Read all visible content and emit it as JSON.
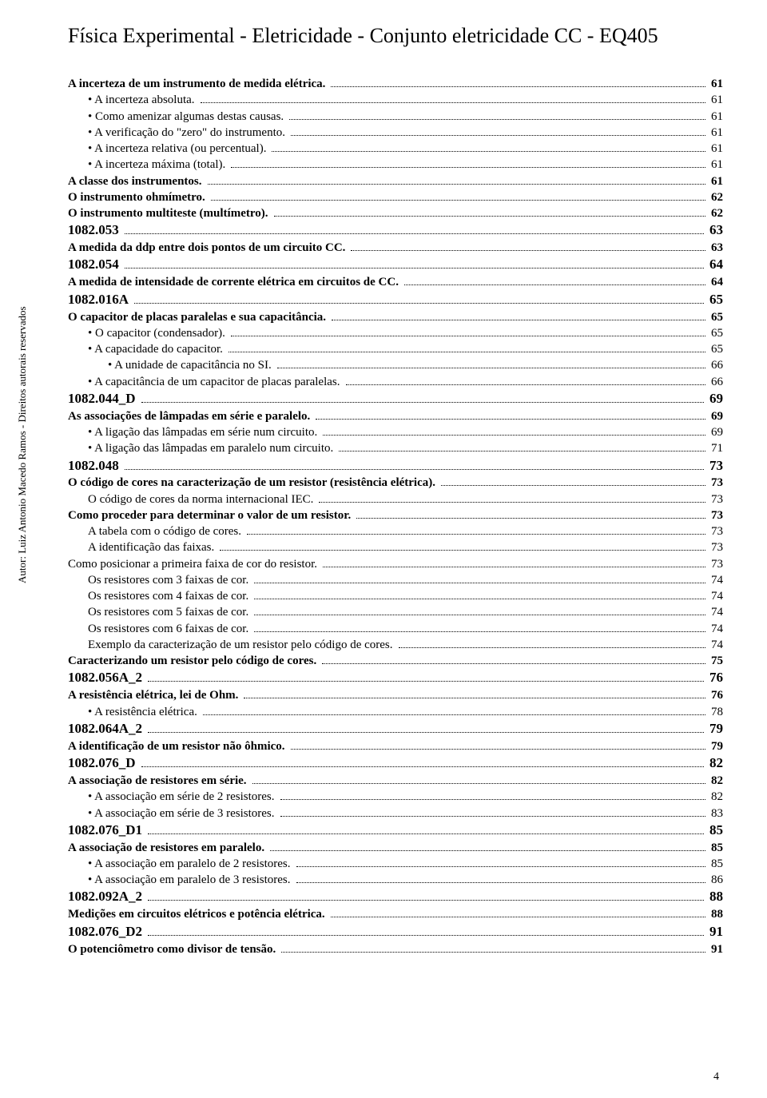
{
  "header_title": "Física Experimental - Eletricidade - Conjunto eletricidade CC - EQ405",
  "vertical_note": "Autor: Luiz Antonio Macedo Ramos - Direitos autorais reservados",
  "page_number": "4",
  "font_family": "Times New Roman",
  "text_color": "#000000",
  "background_color": "#ffffff",
  "toc": [
    {
      "title": "A incerteza de um instrumento de medida elétrica.",
      "page": "61",
      "style": "bold",
      "indent": 0
    },
    {
      "title": "• A incerteza absoluta.",
      "page": "61",
      "style": "normal",
      "indent": 1
    },
    {
      "title": "• Como amenizar algumas destas causas.",
      "page": "61",
      "style": "normal",
      "indent": 1
    },
    {
      "title": "• A verificação do \"zero\" do instrumento.",
      "page": "61",
      "style": "normal",
      "indent": 1
    },
    {
      "title": "• A incerteza relativa (ou percentual).",
      "page": "61",
      "style": "normal",
      "indent": 1
    },
    {
      "title": "• A incerteza máxima (total).",
      "page": "61",
      "style": "normal",
      "indent": 1
    },
    {
      "title": "A classe dos instrumentos.",
      "page": "61",
      "style": "bold",
      "indent": 0
    },
    {
      "title": "O instrumento ohmímetro.",
      "page": "62",
      "style": "bold",
      "indent": 0
    },
    {
      "title": "O instrumento multiteste (multímetro).",
      "page": "62",
      "style": "bold",
      "indent": 0
    },
    {
      "title": "1082.053",
      "page": "63",
      "style": "code",
      "indent": 0
    },
    {
      "title": "A medida da ddp entre dois pontos de um circuito CC.",
      "page": "63",
      "style": "bold",
      "indent": 0
    },
    {
      "title": "1082.054",
      "page": "64",
      "style": "code",
      "indent": 0
    },
    {
      "title": "A medida de intensidade de corrente elétrica em circuitos de CC.",
      "page": "64",
      "style": "bold",
      "indent": 0
    },
    {
      "title": "1082.016A",
      "page": "65",
      "style": "code",
      "indent": 0
    },
    {
      "title": "O capacitor de placas paralelas e sua capacitância.",
      "page": "65",
      "style": "bold",
      "indent": 0
    },
    {
      "title": "• O capacitor (condensador).",
      "page": "65",
      "style": "normal",
      "indent": 1
    },
    {
      "title": "• A capacidade do capacitor.",
      "page": "65",
      "style": "normal",
      "indent": 1
    },
    {
      "title": "• A unidade de capacitância no SI.",
      "page": "66",
      "style": "normal",
      "indent": 2
    },
    {
      "title": "• A capacitância de um capacitor de placas paralelas.",
      "page": "66",
      "style": "normal",
      "indent": 1
    },
    {
      "title": "1082.044_D",
      "page": "69",
      "style": "code",
      "indent": 0
    },
    {
      "title": "As associações de lâmpadas em série e paralelo.",
      "page": "69",
      "style": "bold",
      "indent": 0
    },
    {
      "title": "• A ligação das lâmpadas em série num circuito.",
      "page": "69",
      "style": "normal",
      "indent": 1
    },
    {
      "title": "• A ligação das lâmpadas em paralelo num circuito.",
      "page": "71",
      "style": "normal",
      "indent": 1
    },
    {
      "title": "1082.048",
      "page": "73",
      "style": "code",
      "indent": 0
    },
    {
      "title": "O código de cores na caracterização de um resistor (resistência elétrica).",
      "page": "73",
      "style": "bold",
      "indent": 0
    },
    {
      "title": "O código de cores da norma internacional IEC.",
      "page": "73",
      "style": "normal",
      "indent": 1
    },
    {
      "title": "Como proceder para determinar o valor de um resistor.",
      "page": "73",
      "style": "bold",
      "indent": 0
    },
    {
      "title": "A tabela com o código de cores.",
      "page": "73",
      "style": "normal",
      "indent": 1
    },
    {
      "title": "A identificação das faixas.",
      "page": "73",
      "style": "normal",
      "indent": 1
    },
    {
      "title": "Como posicionar a primeira faixa de cor do resistor.",
      "page": "73",
      "style": "normal",
      "indent": 0
    },
    {
      "title": "Os resistores com 3 faixas de cor.",
      "page": "74",
      "style": "normal",
      "indent": 1
    },
    {
      "title": "Os resistores com 4 faixas de cor.",
      "page": "74",
      "style": "normal",
      "indent": 1
    },
    {
      "title": "Os resistores com 5 faixas de cor.",
      "page": "74",
      "style": "normal",
      "indent": 1
    },
    {
      "title": "Os resistores com 6 faixas de cor.",
      "page": "74",
      "style": "normal",
      "indent": 1
    },
    {
      "title": "Exemplo da caracterização de um resistor pelo código de cores.",
      "page": "74",
      "style": "normal",
      "indent": 1
    },
    {
      "title": "Caracterizando um resistor pelo código de cores.",
      "page": "75",
      "style": "bold",
      "indent": 0
    },
    {
      "title": "1082.056A_2",
      "page": "76",
      "style": "code",
      "indent": 0
    },
    {
      "title": "A resistência elétrica, lei de Ohm.",
      "page": "76",
      "style": "bold",
      "indent": 0
    },
    {
      "title": "• A resistência elétrica.",
      "page": "78",
      "style": "normal",
      "indent": 1
    },
    {
      "title": "1082.064A_2",
      "page": "79",
      "style": "code",
      "indent": 0
    },
    {
      "title": "A identificação de um resistor não ôhmico.",
      "page": "79",
      "style": "bold",
      "indent": 0
    },
    {
      "title": "1082.076_D",
      "page": "82",
      "style": "code",
      "indent": 0
    },
    {
      "title": "A associação de resistores em série.",
      "page": "82",
      "style": "bold",
      "indent": 0
    },
    {
      "title": "• A associação em série de 2 resistores.",
      "page": "82",
      "style": "normal",
      "indent": 1
    },
    {
      "title": "• A associação em série de 3 resistores.",
      "page": "83",
      "style": "normal",
      "indent": 1
    },
    {
      "title": "1082.076_D1",
      "page": "85",
      "style": "code",
      "indent": 0
    },
    {
      "title": "A associação de resistores em paralelo.",
      "page": "85",
      "style": "bold",
      "indent": 0
    },
    {
      "title": "• A associação em paralelo de 2 resistores.",
      "page": "85",
      "style": "normal",
      "indent": 1
    },
    {
      "title": "• A associação em paralelo de 3 resistores.",
      "page": "86",
      "style": "normal",
      "indent": 1
    },
    {
      "title": "1082.092A_2",
      "page": "88",
      "style": "code",
      "indent": 0
    },
    {
      "title": "Medições em circuitos elétricos e potência elétrica.",
      "page": "88",
      "style": "bold",
      "indent": 0
    },
    {
      "title": "1082.076_D2",
      "page": "91",
      "style": "code",
      "indent": 0
    },
    {
      "title": "O potenciômetro como divisor de tensão.",
      "page": "91",
      "style": "bold",
      "indent": 0
    }
  ]
}
